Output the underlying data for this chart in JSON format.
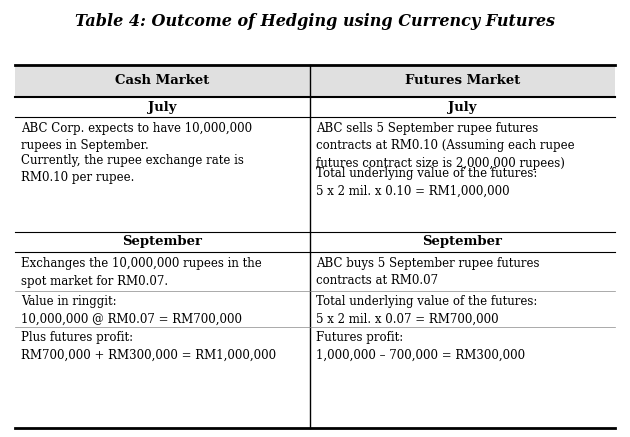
{
  "title": "Table 4: Outcome of Hedging using Currency Futures",
  "title_fontsize": 11.5,
  "col_headers": [
    "Cash Market",
    "Futures Market"
  ],
  "header_fontsize": 9.5,
  "subheader_july": "July",
  "subheader_september": "September",
  "subheader_fontsize": 9.5,
  "body_fontsize": 8.5,
  "col1_july_line1": "ABC Corp. expects to have 10,000,000",
  "col1_july_line2": "rupees in September.",
  "col1_july_line3": "Currently, the rupee exchange rate is",
  "col1_july_line4": "RM0.10 per rupee.",
  "col2_july_line1": "ABC sells 5 September rupee futures",
  "col2_july_line2": "contracts at RM0.10 (Assuming each rupee",
  "col2_july_line3": "futures contract size is 2,000,000 rupees)",
  "col2_july_line4": "Total underlying value of the futures:",
  "col2_july_line5": "5 x 2 mil. x 0.10 = RM1,000,000",
  "col1_sep_line1": "Exchanges the 10,000,000 rupees in the",
  "col1_sep_line2": "spot market for RM0.07.",
  "col1_sep_line3": "Value in ringgit:",
  "col1_sep_line4": "10,000,000 @ RM0.07 = RM700,000",
  "col1_sep_line5": "Plus futures profit:",
  "col1_sep_line6": "RM700,000 + RM300,000 = RM1,000,000",
  "col2_sep_line1": "ABC buys 5 September rupee futures",
  "col2_sep_line2": "contracts at RM0.07",
  "col2_sep_line3": "Total underlying value of the futures:",
  "col2_sep_line4": "5 x 2 mil. x 0.07 = RM700,000",
  "col2_sep_line5": "Futures profit:",
  "col2_sep_line6": "1,000,000 – 700,000 = RM300,000",
  "bg_color": "#ffffff",
  "header_bg": "#e0e0e0",
  "border_color": "#000000",
  "text_color": "#000000",
  "fig_width": 6.3,
  "fig_height": 4.37,
  "fig_dpi": 100
}
